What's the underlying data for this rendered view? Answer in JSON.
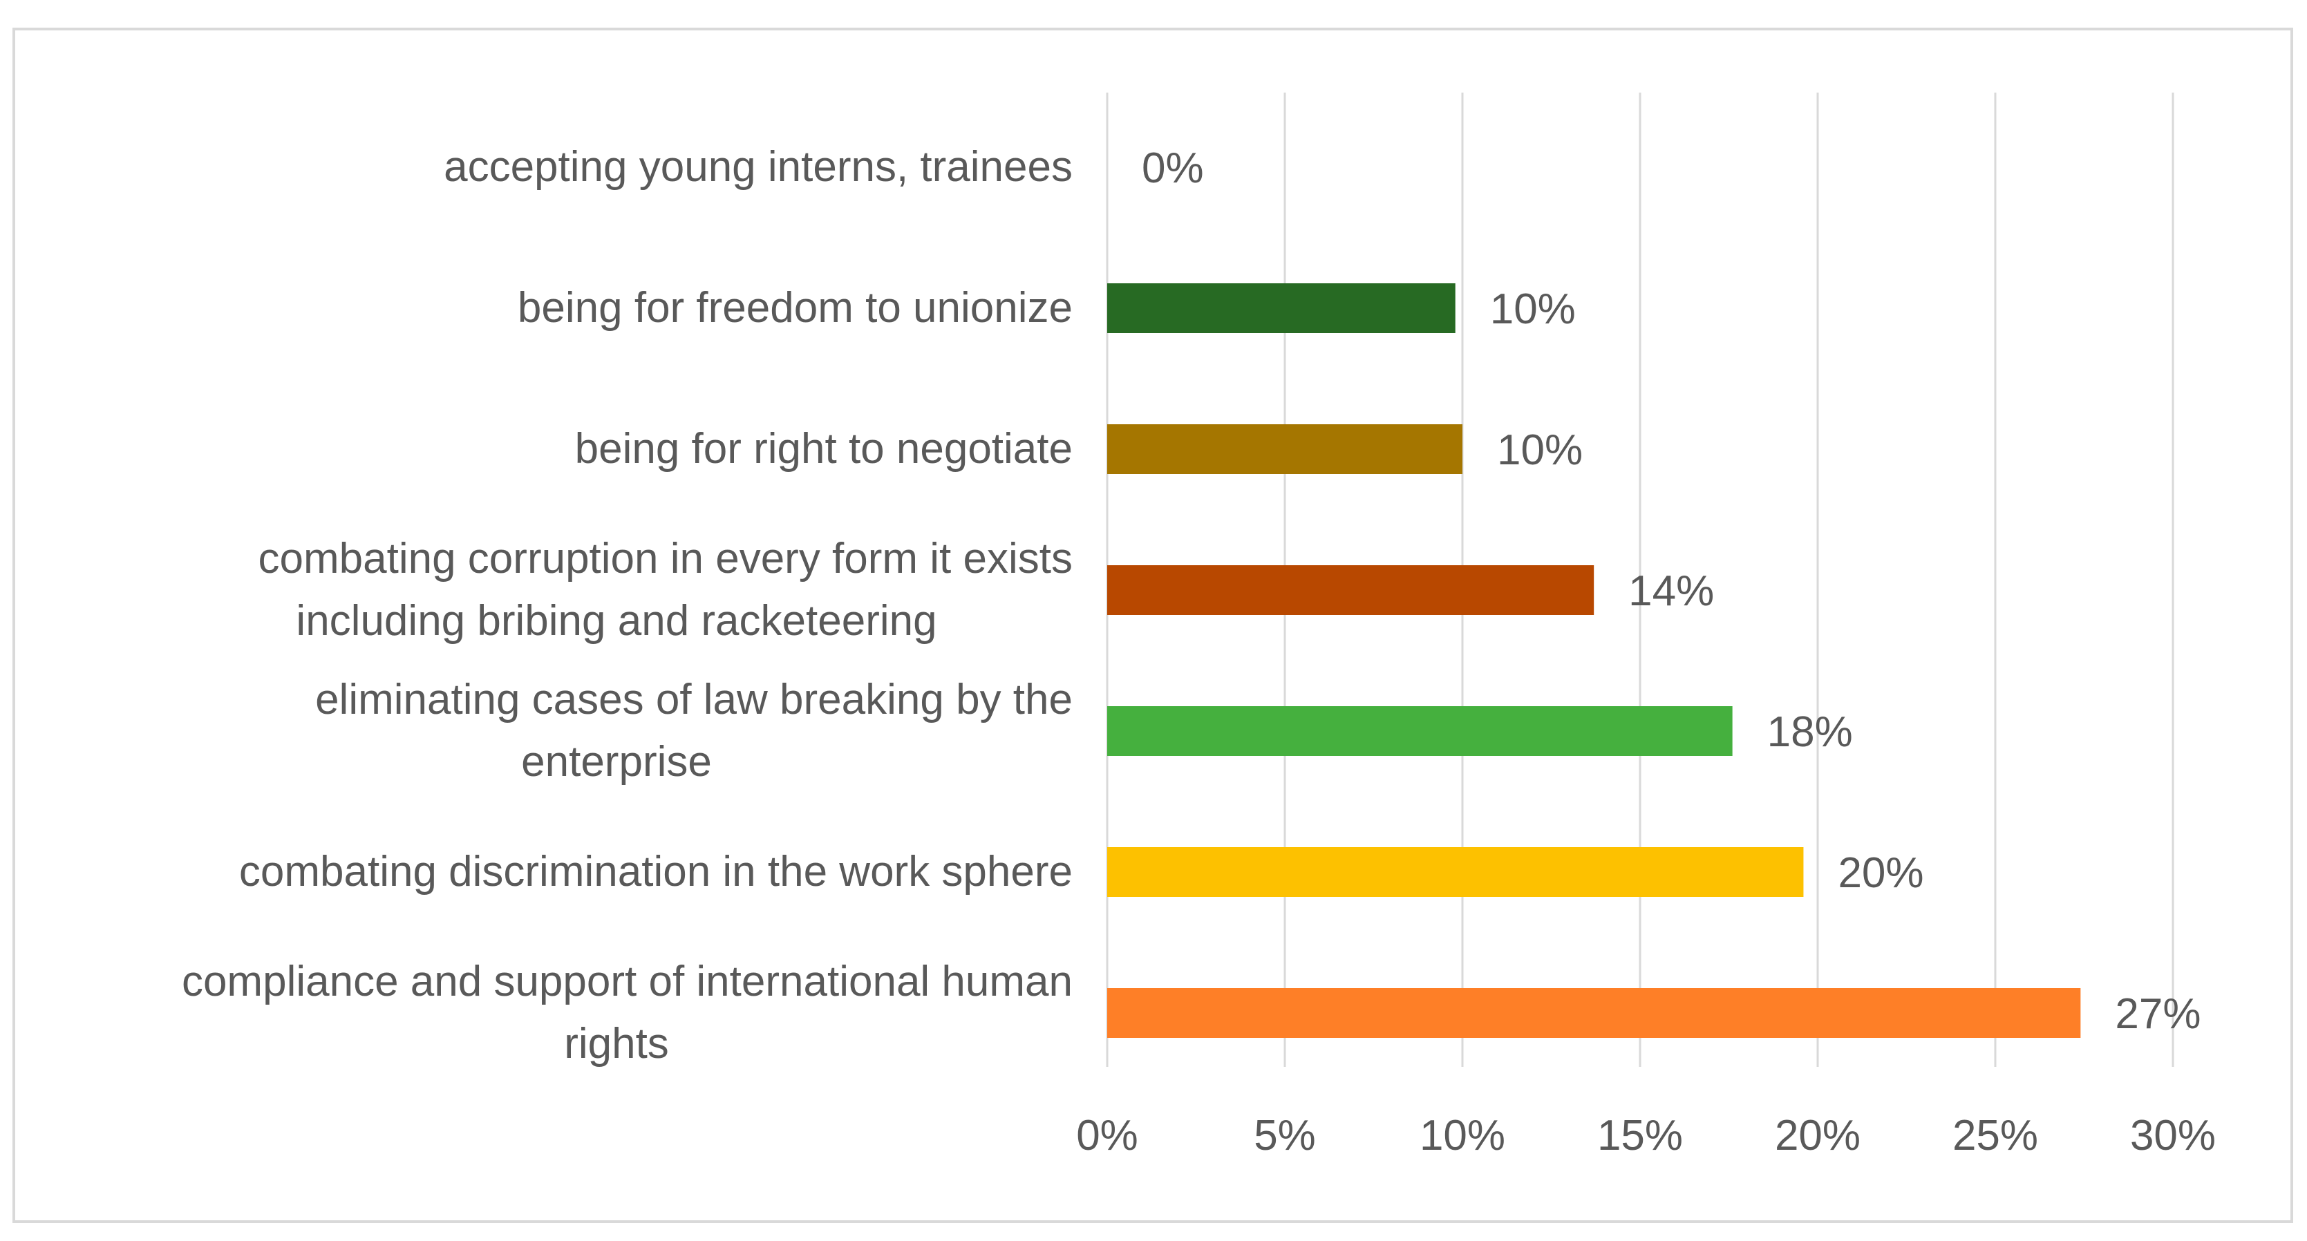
{
  "chart_data": {
    "type": "bar",
    "orientation": "horizontal",
    "categories": [
      [
        "accepting young interns, trainees"
      ],
      [
        "being for freedom to unionize"
      ],
      [
        "being for  right to negotiate"
      ],
      [
        "combating corruption in every form it exists",
        "including bribing and racketeering"
      ],
      [
        "eliminating cases of law breaking by the",
        "enterprise"
      ],
      [
        "combating discrimination in the work sphere"
      ],
      [
        "compliance and support of international human",
        "rights"
      ]
    ],
    "values": [
      0,
      9.8,
      10,
      13.7,
      17.6,
      19.6,
      27.4
    ],
    "data_labels": [
      "0%",
      "10%",
      "10%",
      "14%",
      "18%",
      "20%",
      "27%"
    ],
    "colors": [
      "#ffffff",
      "#276a23",
      "#a57600",
      "#b84800",
      "#45b03e",
      "#fdc100",
      "#fe7f27"
    ],
    "xlim": [
      0,
      30
    ],
    "x_ticks": [
      0,
      5,
      10,
      15,
      20,
      25,
      30
    ],
    "x_tick_labels": [
      "0%",
      "5%",
      "10%",
      "15%",
      "20%",
      "25%",
      "30%"
    ],
    "grid": true,
    "legend": "none",
    "title": "",
    "xlabel": "",
    "ylabel": ""
  }
}
